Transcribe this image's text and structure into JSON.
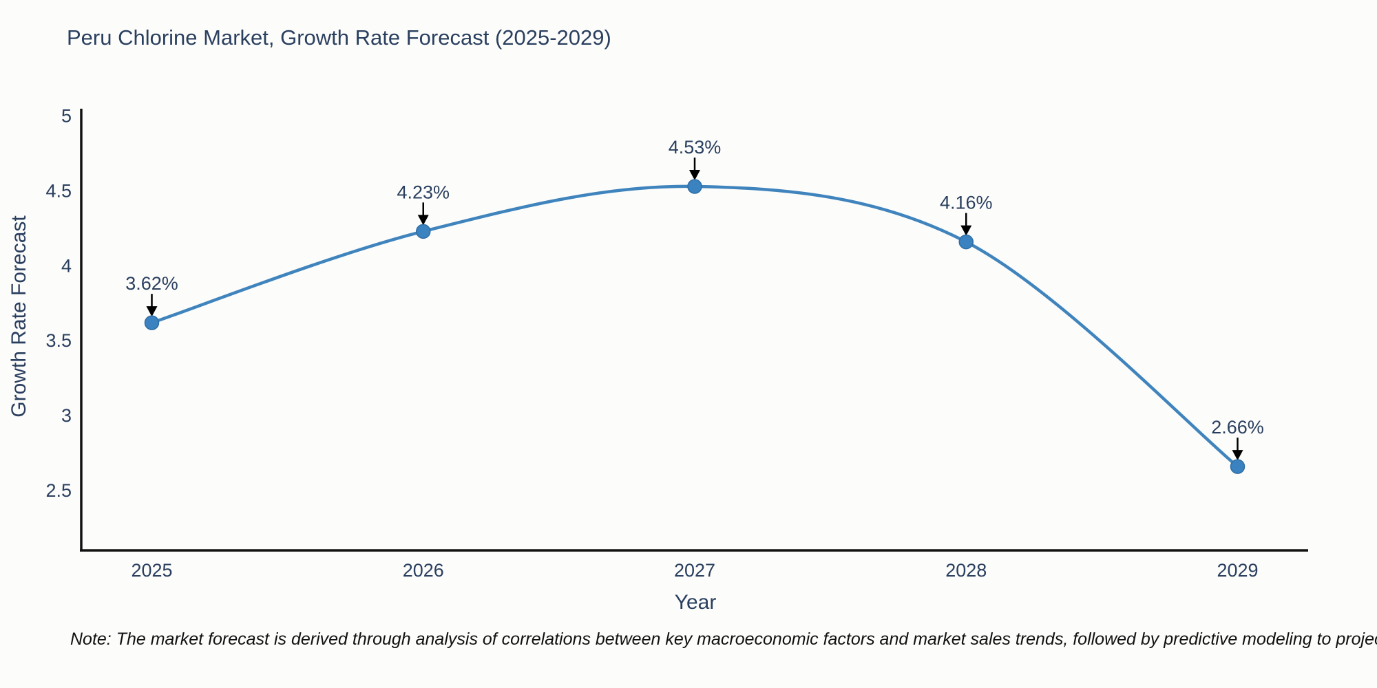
{
  "page": {
    "title": "Peru Chlorine Market, Growth Rate Forecast (2025-2029)",
    "note": "Note: The market forecast is derived through analysis of correlations between key macroeconomic factors and market sales trends, followed by predictive modeling to project future sales"
  },
  "chart_data": {
    "type": "line",
    "title": "Peru Chlorine Market, Growth Rate Forecast (2025-2029)",
    "xlabel": "Year",
    "ylabel": "Growth Rate Forecast",
    "x": [
      2025,
      2026,
      2027,
      2028,
      2029
    ],
    "xtick_labels": [
      "2025",
      "2026",
      "2027",
      "2028",
      "2029"
    ],
    "series": [
      {
        "name": "Growth Rate Forecast",
        "values": [
          3.62,
          4.23,
          4.53,
          4.16,
          2.66
        ]
      }
    ],
    "point_labels": [
      "3.62%",
      "4.23%",
      "4.53%",
      "4.16%",
      "2.66%"
    ],
    "ytick_values": [
      5,
      4.5,
      4,
      3.5,
      3,
      2.5
    ],
    "ytick_labels": [
      "5",
      "4.5",
      "4",
      "3.5",
      "3",
      "2.5"
    ],
    "ylim": [
      2.1,
      5.04
    ],
    "xlim": [
      2024.74,
      2029.26
    ],
    "line_shape": "spline",
    "grid": false,
    "legend": false,
    "annotations_have_arrows": true,
    "colors": {
      "line": "#4084bd",
      "marker": "#3b82c0",
      "marker_edge": "#2e6da4",
      "arrow": "#000000",
      "tick_text": "#2a3f5f",
      "annotation_text": "#2a3f5f",
      "axis_line": "#111111",
      "background": "#fcfcfa"
    }
  }
}
